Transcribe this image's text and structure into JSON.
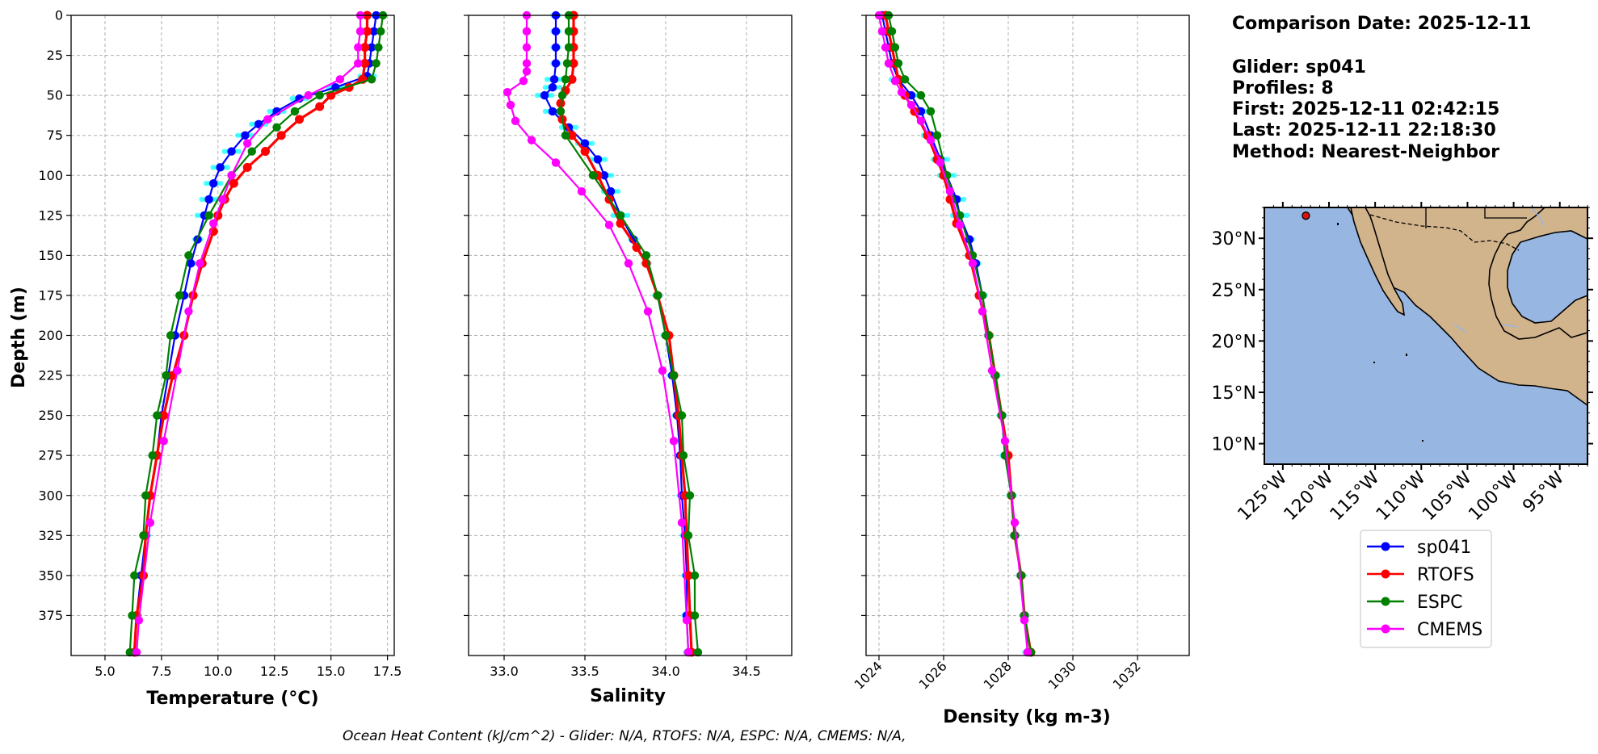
{
  "info": {
    "comparison_date": "Comparison Date: 2025-12-11",
    "glider": "Glider: sp041",
    "profiles": "Profiles: 8",
    "first": "First: 2025-12-11 02:42:15",
    "last": "Last: 2025-12-11 22:18:30",
    "method": "Method: Nearest-Neighbor"
  },
  "footer": "Ocean Heat Content (kJ/cm^2) - Glider: N/A,  RTOFS: N/A,  ESPC: N/A,  CMEMS: N/A,",
  "chart_data": [
    {
      "type": "line",
      "xlabel": "Temperature (°C)",
      "ylabel": "Depth (m)",
      "xlim": [
        3.5,
        17.8
      ],
      "ylim": [
        400,
        0
      ],
      "xticks": [
        5.0,
        7.5,
        10.0,
        12.5,
        15.0,
        17.5
      ],
      "xtick_labels": [
        "5.0",
        "7.5",
        "10.0",
        "12.5",
        "15.0",
        "17.5"
      ],
      "yticks": [
        0,
        25,
        50,
        75,
        100,
        125,
        150,
        175,
        200,
        225,
        250,
        275,
        300,
        325,
        350,
        375
      ],
      "ytick_labels": [
        "0",
        "25",
        "50",
        "75",
        "100",
        "125",
        "150",
        "175",
        "200",
        "225",
        "250",
        "275",
        "300",
        "325",
        "350",
        "375"
      ],
      "grid": true,
      "series": [
        {
          "name": "sp041",
          "color": "#0000ff",
          "depth": [
            0,
            10,
            20,
            30,
            38,
            45,
            52,
            60,
            68,
            75,
            85,
            95,
            105,
            115,
            125,
            140,
            155,
            175,
            200,
            225,
            250,
            275,
            300,
            325,
            350,
            375,
            398
          ],
          "values": [
            17.0,
            16.9,
            16.8,
            16.7,
            16.6,
            15.2,
            13.6,
            12.6,
            11.8,
            11.2,
            10.6,
            10.1,
            9.8,
            9.6,
            9.4,
            9.1,
            8.8,
            8.5,
            8.1,
            7.8,
            7.5,
            7.3,
            7.0,
            6.8,
            6.6,
            6.4,
            6.3
          ]
        },
        {
          "name": "RTOFS",
          "color": "#ff0000",
          "depth": [
            0,
            10,
            20,
            30,
            40,
            45,
            50,
            57,
            65,
            75,
            85,
            95,
            105,
            115,
            125,
            135,
            155,
            175,
            200,
            225,
            250,
            275,
            300,
            325,
            350,
            375,
            398
          ],
          "values": [
            16.6,
            16.6,
            16.5,
            16.5,
            16.4,
            15.8,
            15.0,
            14.5,
            13.6,
            12.8,
            12.1,
            11.3,
            10.7,
            10.3,
            10.0,
            9.8,
            9.3,
            8.9,
            8.5,
            8.0,
            7.6,
            7.3,
            7.0,
            6.8,
            6.7,
            6.4,
            6.3
          ]
        },
        {
          "name": "ESPC",
          "color": "#008000",
          "depth": [
            0,
            10,
            20,
            30,
            40,
            50,
            60,
            70,
            85,
            100,
            125,
            150,
            175,
            200,
            225,
            250,
            275,
            300,
            325,
            350,
            375,
            398
          ],
          "values": [
            17.3,
            17.2,
            17.1,
            17.0,
            16.8,
            14.5,
            13.4,
            12.6,
            11.5,
            10.6,
            9.6,
            8.7,
            8.3,
            7.9,
            7.7,
            7.3,
            7.1,
            6.8,
            6.7,
            6.3,
            6.2,
            6.1
          ]
        },
        {
          "name": "CMEMS",
          "color": "#ff00ff",
          "depth": [
            0,
            10,
            20,
            30,
            40,
            50,
            65,
            80,
            100,
            115,
            130,
            155,
            185,
            222,
            266,
            317,
            378,
            398
          ],
          "values": [
            16.3,
            16.3,
            16.2,
            16.2,
            15.4,
            14.0,
            12.2,
            11.3,
            10.6,
            10.2,
            9.8,
            9.2,
            8.7,
            8.2,
            7.6,
            7.0,
            6.5,
            6.4
          ]
        }
      ]
    },
    {
      "type": "line",
      "xlabel": "Salinity",
      "xlim": [
        32.78,
        34.78
      ],
      "ylim": [
        400,
        0
      ],
      "xticks": [
        33.0,
        33.5,
        34.0,
        34.5
      ],
      "xtick_labels": [
        "33.0",
        "33.5",
        "34.0",
        "34.5"
      ],
      "grid": true,
      "series": [
        {
          "name": "sp041",
          "color": "#0000ff",
          "depth": [
            0,
            10,
            20,
            30,
            40,
            45,
            50,
            60,
            70,
            80,
            90,
            100,
            110,
            125,
            140,
            155,
            175,
            200,
            225,
            250,
            275,
            300,
            325,
            350,
            375,
            398
          ],
          "values": [
            33.32,
            33.32,
            33.32,
            33.32,
            33.31,
            33.3,
            33.25,
            33.3,
            33.4,
            33.5,
            33.58,
            33.62,
            33.66,
            33.72,
            33.8,
            33.88,
            33.95,
            34.0,
            34.04,
            34.07,
            34.09,
            34.1,
            34.12,
            34.13,
            34.13,
            34.14
          ]
        },
        {
          "name": "RTOFS",
          "color": "#ff0000",
          "depth": [
            0,
            10,
            20,
            30,
            40,
            47,
            55,
            65,
            75,
            85,
            100,
            115,
            130,
            145,
            155,
            175,
            200,
            225,
            250,
            275,
            300,
            325,
            350,
            375,
            398
          ],
          "values": [
            33.43,
            33.43,
            33.43,
            33.43,
            33.42,
            33.38,
            33.35,
            33.36,
            33.42,
            33.5,
            33.58,
            33.65,
            33.72,
            33.82,
            33.88,
            33.95,
            34.02,
            34.05,
            34.08,
            34.1,
            34.12,
            34.13,
            34.14,
            34.15,
            34.16
          ]
        },
        {
          "name": "ESPC",
          "color": "#008000",
          "depth": [
            0,
            10,
            20,
            30,
            40,
            50,
            60,
            75,
            100,
            125,
            150,
            175,
            200,
            225,
            250,
            275,
            300,
            325,
            350,
            375,
            398
          ],
          "values": [
            33.4,
            33.4,
            33.4,
            33.39,
            33.38,
            33.36,
            33.35,
            33.38,
            33.55,
            33.72,
            33.88,
            33.95,
            34.0,
            34.05,
            34.1,
            34.11,
            34.15,
            34.14,
            34.18,
            34.18,
            34.2
          ]
        },
        {
          "name": "CMEMS",
          "color": "#ff00ff",
          "depth": [
            0,
            10,
            20,
            30,
            35,
            41,
            48,
            56,
            66,
            78,
            92,
            110,
            131,
            155,
            185,
            222,
            266,
            317,
            378,
            398
          ],
          "values": [
            33.14,
            33.14,
            33.14,
            33.14,
            33.14,
            33.12,
            33.02,
            33.04,
            33.07,
            33.17,
            33.32,
            33.48,
            33.65,
            33.77,
            33.89,
            33.98,
            34.05,
            34.1,
            34.13,
            34.14
          ]
        }
      ]
    },
    {
      "type": "line",
      "xlabel": "Density (kg m-3)",
      "xlim": [
        1023.6,
        1033.6
      ],
      "ylim": [
        400,
        0
      ],
      "xticks": [
        1024,
        1026,
        1028,
        1030,
        1032
      ],
      "xtick_labels": [
        "1024",
        "1026",
        "1028",
        "1030",
        "1032"
      ],
      "grid": true,
      "series": [
        {
          "name": "sp041",
          "color": "#0000ff",
          "depth": [
            0,
            10,
            20,
            30,
            40,
            50,
            60,
            75,
            90,
            100,
            115,
            125,
            140,
            155,
            175,
            200,
            225,
            250,
            275,
            300,
            325,
            350,
            375,
            398
          ],
          "values": [
            1024.1,
            1024.2,
            1024.3,
            1024.4,
            1024.6,
            1025.0,
            1025.3,
            1025.6,
            1025.9,
            1026.1,
            1026.4,
            1026.5,
            1026.8,
            1027.0,
            1027.2,
            1027.4,
            1027.6,
            1027.8,
            1027.9,
            1028.1,
            1028.2,
            1028.4,
            1028.5,
            1028.6
          ]
        },
        {
          "name": "RTOFS",
          "color": "#ff0000",
          "depth": [
            0,
            10,
            20,
            30,
            40,
            50,
            60,
            75,
            90,
            100,
            115,
            130,
            150,
            175,
            200,
            225,
            250,
            275,
            300,
            325,
            350,
            375,
            398
          ],
          "values": [
            1024.2,
            1024.3,
            1024.4,
            1024.5,
            1024.6,
            1024.8,
            1025.1,
            1025.5,
            1025.8,
            1026.0,
            1026.2,
            1026.4,
            1026.8,
            1027.1,
            1027.4,
            1027.6,
            1027.8,
            1028.0,
            1028.1,
            1028.2,
            1028.4,
            1028.5,
            1028.7
          ]
        },
        {
          "name": "ESPC",
          "color": "#008000",
          "depth": [
            0,
            10,
            20,
            30,
            40,
            50,
            60,
            75,
            100,
            125,
            150,
            175,
            200,
            225,
            250,
            275,
            300,
            325,
            350,
            375,
            398
          ],
          "values": [
            1024.3,
            1024.4,
            1024.5,
            1024.6,
            1024.8,
            1025.3,
            1025.6,
            1025.8,
            1026.1,
            1026.5,
            1026.9,
            1027.2,
            1027.4,
            1027.6,
            1027.8,
            1027.9,
            1028.1,
            1028.2,
            1028.4,
            1028.5,
            1028.7
          ]
        },
        {
          "name": "CMEMS",
          "color": "#ff00ff",
          "depth": [
            0,
            10,
            20,
            30,
            41,
            48,
            56,
            66,
            78,
            92,
            110,
            131,
            155,
            185,
            222,
            266,
            317,
            378,
            398
          ],
          "values": [
            1024.0,
            1024.1,
            1024.2,
            1024.3,
            1024.5,
            1024.7,
            1025.0,
            1025.3,
            1025.6,
            1025.9,
            1026.2,
            1026.5,
            1026.9,
            1027.2,
            1027.5,
            1027.9,
            1028.2,
            1028.5,
            1028.6
          ]
        }
      ]
    },
    {
      "type": "map",
      "lon_range": [
        -127,
        -92
      ],
      "lat_range": [
        8,
        33
      ],
      "xtick_labels": [
        "125°W",
        "120°W",
        "115°W",
        "110°W",
        "105°W",
        "100°W",
        "95°W"
      ],
      "ytick_labels": [
        "30°N",
        "25°N",
        "20°N",
        "15°N",
        "10°N"
      ],
      "ocean_color": "#97b6e1",
      "land_color": "#d2b48c",
      "glider_position": {
        "lon": -122.5,
        "lat": 32.2,
        "color": "#dd1111"
      }
    }
  ],
  "legend": {
    "placement": "below-map",
    "entries": [
      {
        "name": "sp041",
        "color": "#0000ff"
      },
      {
        "name": "RTOFS",
        "color": "#ff0000"
      },
      {
        "name": "ESPC",
        "color": "#008000"
      },
      {
        "name": "CMEMS",
        "color": "#ff00ff"
      }
    ]
  }
}
